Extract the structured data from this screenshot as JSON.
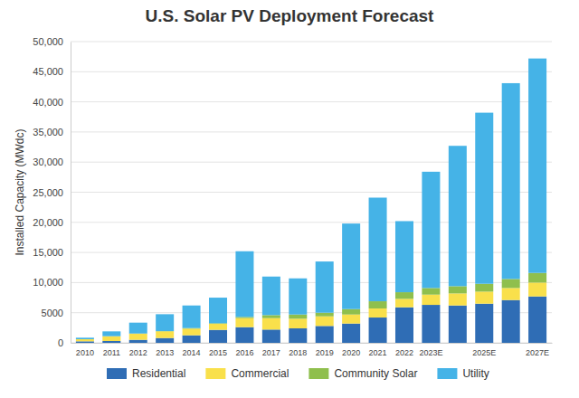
{
  "chart_data": {
    "type": "bar",
    "title": "U.S. Solar PV Deployment Forecast",
    "y_label": "Installed Capacity (MWdc)",
    "stacked": true,
    "grid": true,
    "legend": "bottom",
    "categories": [
      "2010",
      "2011",
      "2012",
      "2013",
      "2014",
      "2015",
      "2016",
      "2017",
      "2018",
      "2019",
      "2020",
      "2021",
      "2022",
      "2023E",
      null,
      "2025E",
      null,
      "2027E"
    ],
    "ylim": [
      0,
      50000
    ],
    "yticks": [
      0,
      5000,
      {
        "value": 10000,
        "label": "10,000"
      },
      {
        "value": 15000,
        "label": "15,000"
      },
      {
        "value": 20000,
        "label": "20,000"
      },
      {
        "value": 25000,
        "label": "25,000"
      },
      {
        "value": 30000,
        "label": "30,000"
      },
      {
        "value": 35000,
        "label": "35,000"
      },
      {
        "value": 40000,
        "label": "40,000"
      },
      {
        "value": 45000,
        "label": "45,000"
      },
      {
        "value": 50000,
        "label": "50,000"
      }
    ],
    "series": [
      {
        "name": "Residential",
        "color": "#2f6db5",
        "values": [
          250,
          300,
          500,
          800,
          1250,
          2150,
          2600,
          2200,
          2400,
          2800,
          3200,
          4200,
          5900,
          6300,
          6200,
          6500,
          7100,
          7700
        ]
      },
      {
        "name": "Commercial",
        "color": "#f9e04b",
        "values": [
          350,
          800,
          1000,
          1100,
          1100,
          1000,
          1500,
          1900,
          1600,
          1600,
          1500,
          1500,
          1400,
          1700,
          2000,
          2000,
          2000,
          2300
        ]
      },
      {
        "name": "Community Solar",
        "color": "#8fbf4d",
        "values": [
          0,
          0,
          50,
          50,
          100,
          100,
          200,
          500,
          700,
          600,
          900,
          1200,
          1100,
          1100,
          1200,
          1300,
          1500,
          1600
        ]
      },
      {
        "name": "Utility",
        "color": "#45b3e7",
        "values": [
          250,
          800,
          1800,
          2800,
          3750,
          4250,
          10900,
          6400,
          6000,
          8500,
          14200,
          17200,
          11800,
          19300,
          23300,
          28400,
          32500,
          35600
        ]
      }
    ]
  }
}
